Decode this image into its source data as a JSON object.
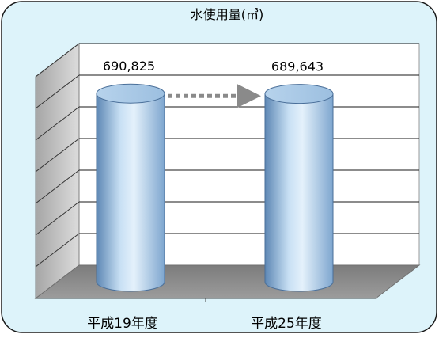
{
  "chart_data": {
    "type": "bar",
    "style": "3d-cylinder",
    "title": "水使用量(㎥)",
    "categories": [
      "平成19年度",
      "平成25年度"
    ],
    "values": [
      690825,
      689643
    ],
    "value_labels": [
      "690,825",
      "689,643"
    ],
    "ylim": [
      0,
      800000
    ],
    "grid": true,
    "legend": "none",
    "annotation": "arrow-between-bars",
    "colors": {
      "panel_background": "#ddf3fa",
      "panel_border": "#1a1a1a",
      "bar_fill": "#9ec2e3",
      "bar_highlight": "#dcecf8",
      "bar_shadow": "#5d87b4",
      "arrow": "#8a8a8a",
      "floor": "#8c8c8c",
      "side_wall": "#c9c9c9",
      "back_wall": "#ffffff"
    }
  }
}
